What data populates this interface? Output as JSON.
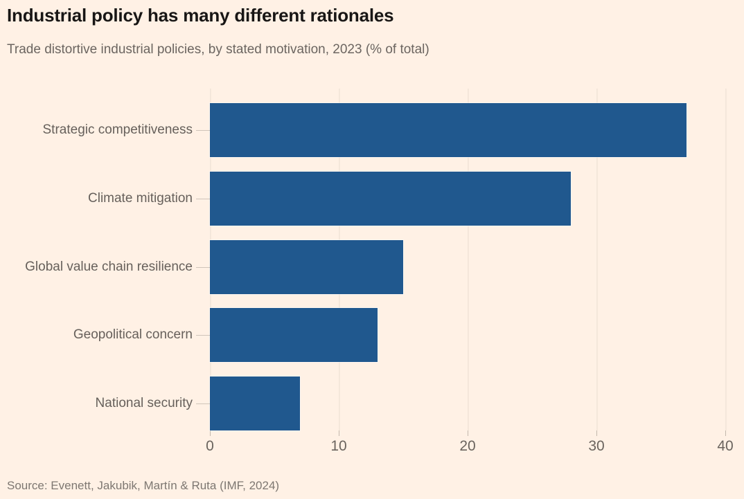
{
  "header": {
    "title": "Industrial policy has many different rationales",
    "subtitle": "Trade distortive industrial policies, by stated motivation, 2023 (% of total)"
  },
  "chart_data": {
    "type": "bar",
    "orientation": "horizontal",
    "title": "Industrial policy has many different rationales",
    "subtitle": "Trade distortive industrial policies, by stated motivation, 2023 (% of total)",
    "categories": [
      "Strategic competitiveness",
      "Climate mitigation",
      "Global value chain resilience",
      "Geopolitical concern",
      "National security"
    ],
    "values": [
      37,
      28,
      15,
      13,
      7
    ],
    "xlabel": "",
    "ylabel": "",
    "xlim": [
      0,
      40
    ],
    "xticks": [
      0,
      10,
      20,
      30,
      40
    ],
    "grid": true,
    "legend": "none",
    "bar_color": "#20588E",
    "background_color": "#FFF1E5"
  },
  "footer": {
    "source": "Source: Evenett, Jakubik, Martín & Ruta (IMF, 2024)"
  }
}
